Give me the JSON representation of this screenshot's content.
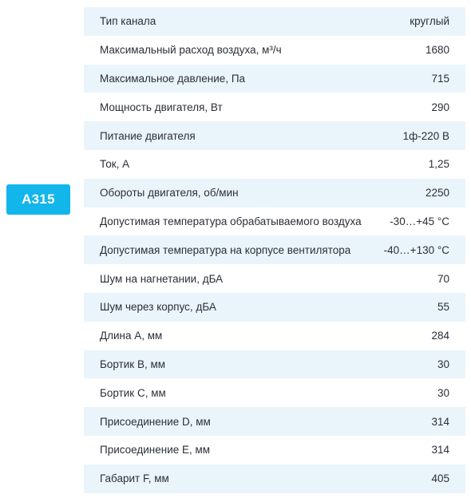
{
  "model": {
    "label": "A315",
    "accent_color": "#12b6ea"
  },
  "specs": [
    {
      "label": "Тип канала",
      "value": "круглый"
    },
    {
      "label": "Максимальный расход воздуха, м³/ч",
      "value": "1680"
    },
    {
      "label": "Максимальное давление, Па",
      "value": "715"
    },
    {
      "label": "Мощность двигателя, Вт",
      "value": "290"
    },
    {
      "label": "Питание двигателя",
      "value": "1ф-220 В"
    },
    {
      "label": "Ток, А",
      "value": "1,25"
    },
    {
      "label": "Обороты двигателя, об/мин",
      "value": "2250"
    },
    {
      "label": "Допустимая температура обрабатываемого воздуха",
      "value": "-30…+45 °C"
    },
    {
      "label": "Допустимая температура на корпусе вентилятора",
      "value": "-40…+130 °C"
    },
    {
      "label": "Шум на нагнетании, дБА",
      "value": "70"
    },
    {
      "label": "Шум через корпус, дБА",
      "value": "55"
    },
    {
      "label": "Длина А, мм",
      "value": "284"
    },
    {
      "label": "Бортик В, мм",
      "value": "30"
    },
    {
      "label": "Бортик С, мм",
      "value": "30"
    },
    {
      "label": "Присоединение D, мм",
      "value": "314"
    },
    {
      "label": "Присоединение Е, мм",
      "value": "314"
    },
    {
      "label": "Габарит F, мм",
      "value": "405"
    }
  ]
}
